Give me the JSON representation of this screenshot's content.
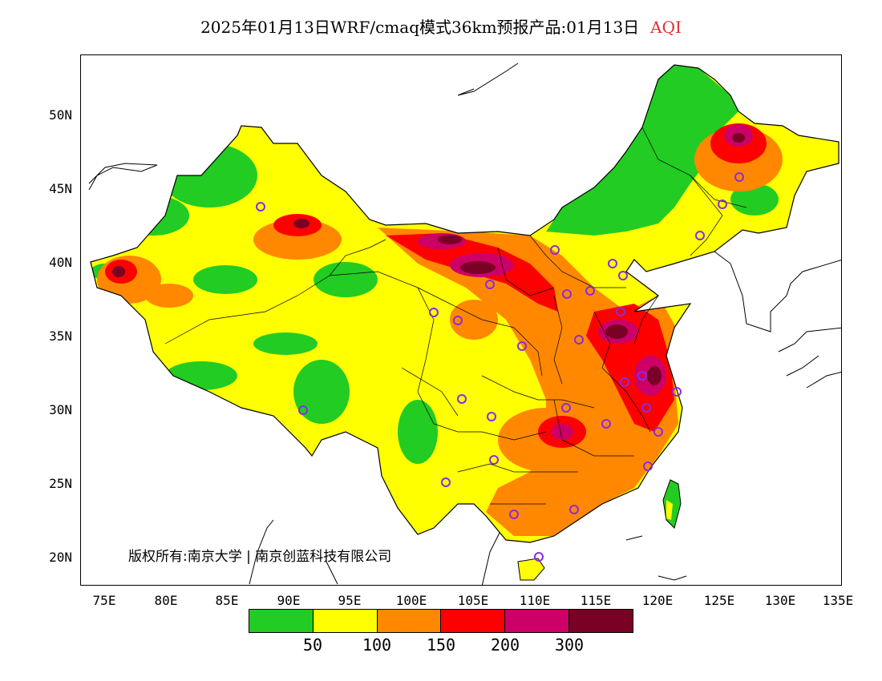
{
  "title": {
    "main": "2025年01月13日WRF/cmaq模式36km预报产品:01月13日",
    "variable": "AQI"
  },
  "axes": {
    "lat_labels": [
      "50N",
      "45N",
      "40N",
      "35N",
      "30N",
      "25N",
      "20N"
    ],
    "lon_labels": [
      "75E",
      "80E",
      "85E",
      "90E",
      "95E",
      "100E",
      "105E",
      "110E",
      "115E",
      "120E",
      "125E",
      "130E",
      "135E"
    ]
  },
  "copyright": "版权所有:南京大学 | 南京创蓝科技有限公司",
  "legend": {
    "colors": [
      "#22cc22",
      "#ffff00",
      "#ff8800",
      "#ff0000",
      "#cc0066",
      "#7a0025"
    ],
    "labels": [
      "50",
      "100",
      "150",
      "200",
      "300"
    ]
  },
  "colors": {
    "good": "#22cc22",
    "moderate": "#ffff00",
    "unhealthy_sensitive": "#ff8800",
    "unhealthy": "#ff0000",
    "very_unhealthy": "#cc0066",
    "hazardous": "#7a0025",
    "station_marker": "#8a2be2"
  }
}
